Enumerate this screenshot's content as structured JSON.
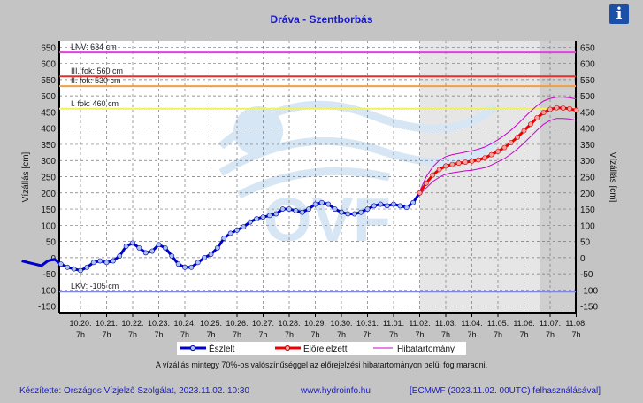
{
  "title": "Dráva - Szentborbás",
  "info_icon": "info-icon",
  "note": "A vízállás mintegy 70%-os valószínűséggel az előrejelzési hibatartományon belül fog maradni.",
  "footer": {
    "author": "Készítette: Országos Vízjelző Szolgálat, 2023.11.02. 10:30",
    "url": "www.hydroinfo.hu",
    "source": "[ECMWF (2023.11.02. 00UTC) felhasználásával]"
  },
  "logo_text": "OVF",
  "colors": {
    "observed": "#0000cc",
    "forecast": "#ee0000",
    "band": "#cc00cc",
    "bg": "#c4c4c4"
  },
  "chart_data": {
    "type": "line",
    "title": "Dráva - Szentborbás",
    "ylabel": "Vízállás [cm]",
    "ylabel_right": "Vízállás [cm]",
    "ylim": [
      -170,
      670
    ],
    "yticks": [
      650,
      600,
      550,
      500,
      450,
      400,
      350,
      300,
      250,
      200,
      150,
      100,
      50,
      0,
      -50,
      -100,
      -150
    ],
    "xticks": [
      "10.20.",
      "10.21.",
      "10.22.",
      "10.23.",
      "10.24.",
      "10.25.",
      "10.26.",
      "10.27.",
      "10.28.",
      "10.29.",
      "10.30.",
      "10.31.",
      "11.01.",
      "11.02.",
      "11.03.",
      "11.04.",
      "11.05.",
      "11.06.",
      "11.07.",
      "11.08."
    ],
    "xtick_hour": "7h",
    "grid": true,
    "legend": [
      "Észlelt",
      "Előrejelzett",
      "Hibatartomány"
    ],
    "legend_placement": "bottom",
    "thresholds": [
      {
        "label": "LNV: 634 cm",
        "value": 634,
        "color": "#e040e0"
      },
      {
        "label": "III. fok: 560 cm",
        "value": 560,
        "color": "#e03030"
      },
      {
        "label": "II. fok: 530 cm",
        "value": 530,
        "color": "#f0a040"
      },
      {
        "label": "I. fok: 460 cm",
        "value": 460,
        "color": "#f0f060"
      },
      {
        "label": "LKV: -105 cm",
        "value": -105,
        "color": "#8080ff"
      }
    ],
    "interval_hours": 6,
    "observed_end_day": 13,
    "observed": [
      -10,
      -15,
      -20,
      -25,
      -10,
      -5,
      -20,
      -30,
      -35,
      -40,
      -30,
      -15,
      -10,
      -15,
      -10,
      5,
      35,
      45,
      30,
      15,
      20,
      40,
      30,
      5,
      -20,
      -30,
      -30,
      -15,
      0,
      10,
      30,
      60,
      75,
      85,
      95,
      110,
      120,
      125,
      130,
      135,
      150,
      150,
      145,
      140,
      150,
      165,
      170,
      165,
      150,
      140,
      135,
      135,
      140,
      150,
      160,
      165,
      160,
      165,
      160,
      155,
      170,
      200
    ],
    "forecast_start_day": 13,
    "forecast": [
      200,
      230,
      255,
      272,
      283,
      288,
      292,
      295,
      298,
      302,
      308,
      318,
      328,
      340,
      355,
      372,
      392,
      412,
      432,
      448,
      458,
      463,
      462,
      460,
      455
    ],
    "forecast_upper": [
      205,
      250,
      280,
      300,
      312,
      318,
      322,
      326,
      330,
      335,
      342,
      352,
      364,
      378,
      394,
      412,
      432,
      452,
      470,
      484,
      492,
      496,
      496,
      494,
      490
    ],
    "forecast_lower": [
      195,
      215,
      235,
      248,
      258,
      262,
      265,
      268,
      270,
      274,
      278,
      286,
      296,
      306,
      320,
      336,
      354,
      374,
      394,
      412,
      424,
      430,
      430,
      428,
      424
    ],
    "forecast_shade_start_day": 13,
    "forecast_dark_shade_start_day": 17.6
  }
}
